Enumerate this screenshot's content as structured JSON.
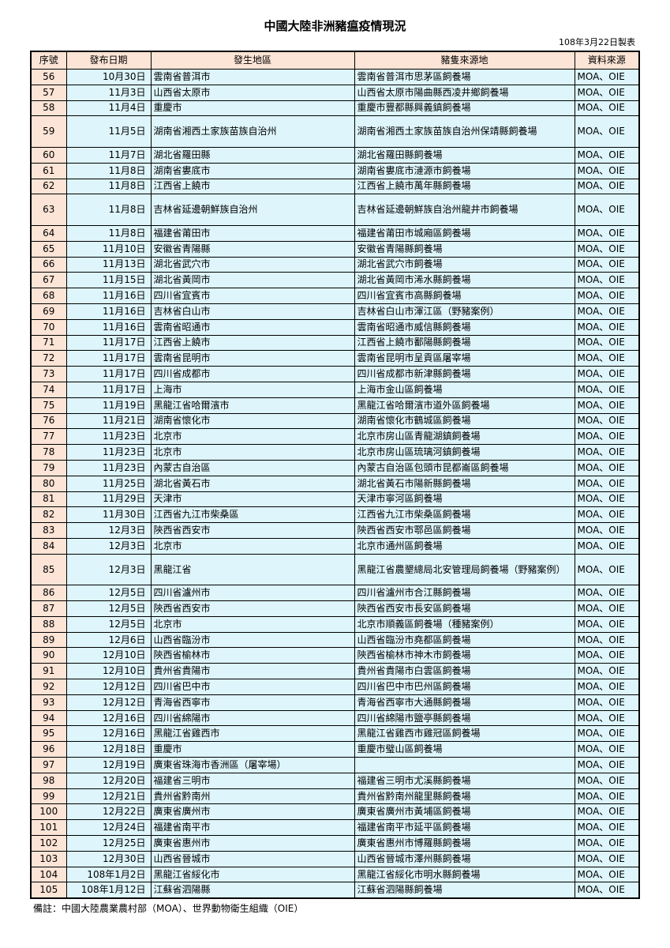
{
  "title": "中國大陸非洲豬瘟疫情現況",
  "made_date": "108年3月22日製表",
  "colors": {
    "header_bg": "#fce4d6",
    "cell_bg": "#ddf5fb"
  },
  "table": {
    "headers": [
      "序號",
      "發布日期",
      "發生地區",
      "豬隻來源地",
      "資料來源"
    ],
    "rows": [
      [
        "56",
        "10月30日",
        "雲南省普洱市",
        "雲南省普洱市思茅區飼養場",
        "MOA、OIE"
      ],
      [
        "57",
        "11月3日",
        "山西省太原市",
        "山西省太原市陽曲縣西凌井鄉飼養場",
        "MOA、OIE"
      ],
      [
        "58",
        "11月4日",
        "重慶市",
        "重慶市豐都縣興義鎮飼養場",
        "MOA、OIE"
      ],
      [
        "59",
        "11月5日",
        "湖南省湘西土家族苗族自治州",
        "湖南省湘西土家族苗族自治州保靖縣飼養場",
        "MOA、OIE"
      ],
      [
        "60",
        "11月7日",
        "湖北省羅田縣",
        "湖北省羅田縣飼養場",
        "MOA、OIE"
      ],
      [
        "61",
        "11月8日",
        "湖南省婁底市",
        "湖南省婁底市漣源市飼養場",
        "MOA、OIE"
      ],
      [
        "62",
        "11月8日",
        "江西省上饒市",
        "江西省上饒市萬年縣飼養場",
        "MOA、OIE"
      ],
      [
        "63",
        "11月8日",
        "吉林省延邊朝鮮族自治州",
        "吉林省延邊朝鮮族自治州龍井市飼養場",
        "MOA、OIE"
      ],
      [
        "64",
        "11月8日",
        "福建省莆田市",
        "福建省莆田市城廂區飼養場",
        "MOA、OIE"
      ],
      [
        "65",
        "11月10日",
        "安徽省青陽縣",
        "安徽省青陽縣飼養場",
        "MOA、OIE"
      ],
      [
        "66",
        "11月13日",
        "湖北省武穴市",
        "湖北省武穴市飼養場",
        "MOA、OIE"
      ],
      [
        "67",
        "11月15日",
        "湖北省黃岡市",
        "湖北省黃岡市浠水縣飼養場",
        "MOA、OIE"
      ],
      [
        "68",
        "11月16日",
        "四川省宜賓市",
        "四川省宜賓市高縣飼養場",
        "MOA、OIE"
      ],
      [
        "69",
        "11月16日",
        "吉林省白山市",
        "吉林省白山市渾江區（野豬案例）",
        "MOA、OIE"
      ],
      [
        "70",
        "11月16日",
        "雲南省昭通市",
        "雲南省昭通市威信縣飼養場",
        "MOA、OIE"
      ],
      [
        "71",
        "11月17日",
        "江西省上饒市",
        "江西省上饒市鄱陽縣飼養場",
        "MOA、OIE"
      ],
      [
        "72",
        "11月17日",
        "雲南省昆明市",
        "雲南省昆明市呈貢區屠宰場",
        "MOA、OIE"
      ],
      [
        "73",
        "11月17日",
        "四川省成都市",
        "四川省成都市新津縣飼養場",
        "MOA、OIE"
      ],
      [
        "74",
        "11月17日",
        "上海市",
        "上海市金山區飼養場",
        "MOA、OIE"
      ],
      [
        "75",
        "11月19日",
        "黑龍江省哈爾濱市",
        "黑龍江省哈爾濱市道外區飼養場",
        "MOA、OIE"
      ],
      [
        "76",
        "11月21日",
        "湖南省懷化市",
        "湖南省懷化市鶴城區飼養場",
        "MOA、OIE"
      ],
      [
        "77",
        "11月23日",
        "北京市",
        "北京市房山區青龍湖鎮飼養場",
        "MOA、OIE"
      ],
      [
        "78",
        "11月23日",
        "北京市",
        "北京市房山區琉璃河鎮飼養場",
        "MOA、OIE"
      ],
      [
        "79",
        "11月23日",
        "內蒙古自治區",
        "內蒙古自治區包頭市昆都崙區飼養場",
        "MOA、OIE"
      ],
      [
        "80",
        "11月25日",
        "湖北省黃石市",
        "湖北省黃石市陽新縣飼養場",
        "MOA、OIE"
      ],
      [
        "81",
        "11月29日",
        "天津市",
        "天津市寧河區飼養場",
        "MOA、OIE"
      ],
      [
        "82",
        "11月30日",
        "江西省九江市柴桑區",
        "江西省九江市柴桑區飼養場",
        "MOA、OIE"
      ],
      [
        "83",
        "12月3日",
        "陝西省西安市",
        "陝西省西安市鄠邑區飼養場",
        "MOA、OIE"
      ],
      [
        "84",
        "12月3日",
        "北京市",
        "北京市通州區飼養場",
        "MOA、OIE"
      ],
      [
        "85",
        "12月3日",
        "黑龍江省",
        "黑龍江省農墾總局北安管理局飼養場（野豬案例）",
        "MOA、OIE"
      ],
      [
        "86",
        "12月5日",
        "四川省瀘州市",
        "四川省瀘州市合江縣飼養場",
        "MOA、OIE"
      ],
      [
        "87",
        "12月5日",
        "陝西省西安市",
        "陝西省西安市長安區飼養場",
        "MOA、OIE"
      ],
      [
        "88",
        "12月5日",
        "北京市",
        "北京市順義區飼養場（種豬案例）",
        "MOA、OIE"
      ],
      [
        "89",
        "12月6日",
        "山西省臨汾市",
        "山西省臨汾市堯都區飼養場",
        "MOA、OIE"
      ],
      [
        "90",
        "12月10日",
        "陝西省榆林市",
        "陝西省榆林市神木市飼養場",
        "MOA、OIE"
      ],
      [
        "91",
        "12月10日",
        "貴州省貴陽市",
        "貴州省貴陽市白雲區飼養場",
        "MOA、OIE"
      ],
      [
        "92",
        "12月12日",
        "四川省巴中市",
        "四川省巴中市巴州區飼養場",
        "MOA、OIE"
      ],
      [
        "93",
        "12月12日",
        "青海省西寧市",
        "青海省西寧市大通縣飼養場",
        "MOA、OIE"
      ],
      [
        "94",
        "12月16日",
        "四川省綿陽市",
        "四川省綿陽市鹽亭縣飼養場",
        "MOA、OIE"
      ],
      [
        "95",
        "12月16日",
        "黑龍江省雞西市",
        "黑龍江省雞西市雞冠區飼養場",
        "MOA、OIE"
      ],
      [
        "96",
        "12月18日",
        "重慶市",
        "重慶市璧山區飼養場",
        "MOA、OIE"
      ],
      [
        "97",
        "12月19日",
        "廣東省珠海市香洲區（屠宰場）",
        "",
        "MOA、OIE"
      ],
      [
        "98",
        "12月20日",
        "福建省三明市",
        "福建省三明市尤溪縣飼養場",
        "MOA、OIE"
      ],
      [
        "99",
        "12月21日",
        "貴州省黔南州",
        "貴州省黔南州龍里縣飼養場",
        "MOA、OIE"
      ],
      [
        "100",
        "12月22日",
        "廣東省廣州市",
        "廣東省廣州市黃埔區飼養場",
        "MOA、OIE"
      ],
      [
        "101",
        "12月24日",
        "福建省南平市",
        "福建省南平市延平區飼養場",
        "MOA、OIE"
      ],
      [
        "102",
        "12月25日",
        "廣東省惠州市",
        "廣東省惠州市博羅縣飼養場",
        "MOA、OIE"
      ],
      [
        "103",
        "12月30日",
        "山西省晉城市",
        "山西省晉城市澤州縣飼養場",
        "MOA、OIE"
      ],
      [
        "104",
        "108年1月2日",
        "黑龍江省綏化市",
        "黑龍江省綏化市明水縣飼養場",
        "MOA、OIE"
      ],
      [
        "105",
        "108年1月12日",
        "江蘇省泗陽縣",
        "江蘇省泗陽縣飼養場",
        "MOA、OIE"
      ]
    ]
  },
  "footnote": "備註：中國大陸農業農村部（MOA）、世界動物衛生組織（OIE）"
}
